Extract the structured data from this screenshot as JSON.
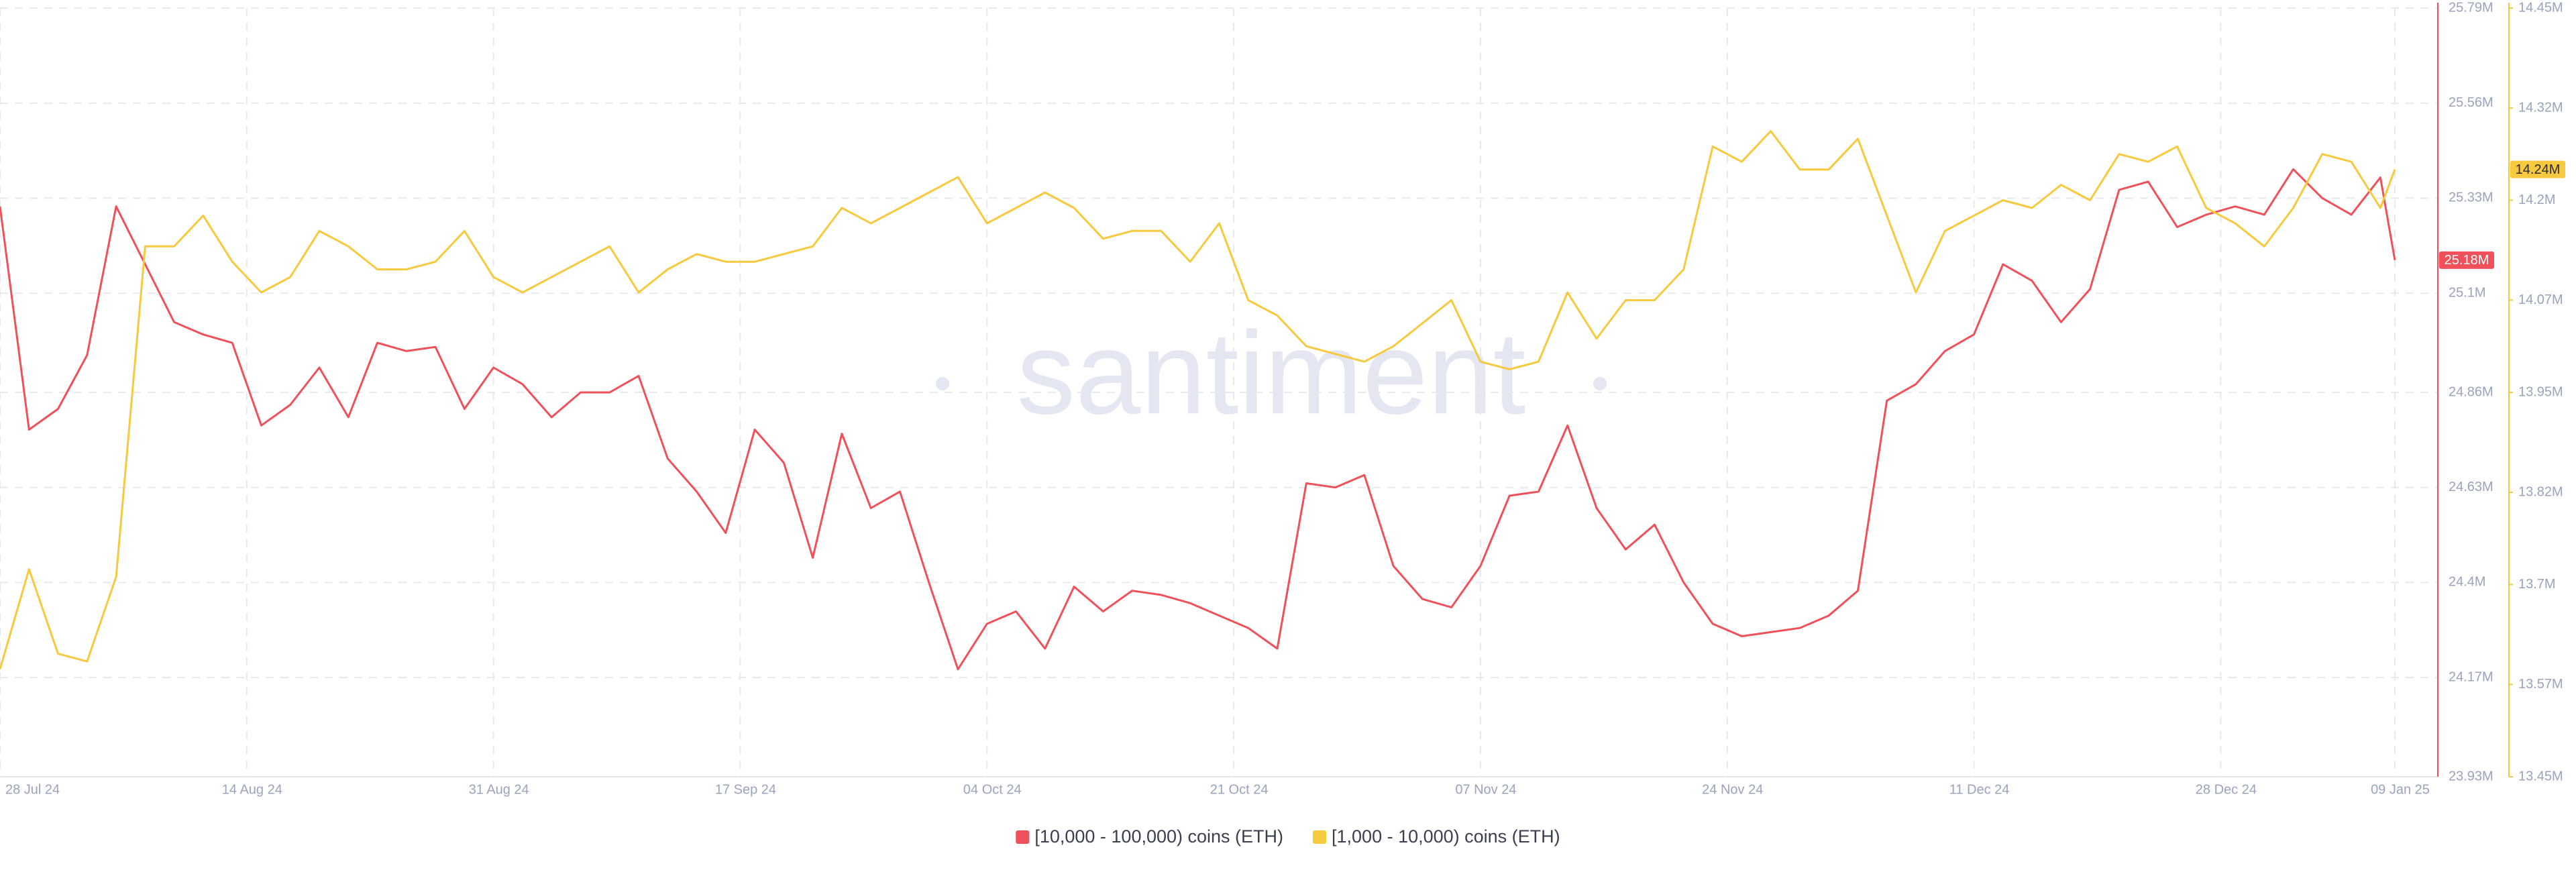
{
  "chart_data": {
    "type": "line",
    "watermark": "santiment",
    "x": [
      "2024-07-28",
      "2024-07-30",
      "2024-08-01",
      "2024-08-03",
      "2024-08-05",
      "2024-08-07",
      "2024-08-09",
      "2024-08-11",
      "2024-08-13",
      "2024-08-15",
      "2024-08-17",
      "2024-08-19",
      "2024-08-21",
      "2024-08-23",
      "2024-08-25",
      "2024-08-27",
      "2024-08-29",
      "2024-08-31",
      "2024-09-02",
      "2024-09-04",
      "2024-09-06",
      "2024-09-08",
      "2024-09-10",
      "2024-09-12",
      "2024-09-14",
      "2024-09-16",
      "2024-09-18",
      "2024-09-20",
      "2024-09-22",
      "2024-09-24",
      "2024-09-26",
      "2024-09-28",
      "2024-09-30",
      "2024-10-02",
      "2024-10-04",
      "2024-10-06",
      "2024-10-08",
      "2024-10-10",
      "2024-10-12",
      "2024-10-14",
      "2024-10-16",
      "2024-10-18",
      "2024-10-20",
      "2024-10-22",
      "2024-10-24",
      "2024-10-26",
      "2024-10-28",
      "2024-10-30",
      "2024-11-01",
      "2024-11-03",
      "2024-11-05",
      "2024-11-07",
      "2024-11-09",
      "2024-11-11",
      "2024-11-13",
      "2024-11-15",
      "2024-11-17",
      "2024-11-19",
      "2024-11-21",
      "2024-11-23",
      "2024-11-25",
      "2024-11-27",
      "2024-11-29",
      "2024-12-01",
      "2024-12-03",
      "2024-12-05",
      "2024-12-07",
      "2024-12-09",
      "2024-12-11",
      "2024-12-13",
      "2024-12-15",
      "2024-12-17",
      "2024-12-19",
      "2024-12-21",
      "2024-12-23",
      "2024-12-25",
      "2024-12-27",
      "2024-12-29",
      "2024-12-31",
      "2025-01-02",
      "2025-01-04",
      "2025-01-06",
      "2025-01-08",
      "2025-01-09"
    ],
    "xlim": [
      "2024-07-28",
      "2025-01-09"
    ],
    "xticks": [
      {
        "value": "2024-07-28",
        "label": "28 Jul 24"
      },
      {
        "value": "2024-08-14",
        "label": "14 Aug 24"
      },
      {
        "value": "2024-08-31",
        "label": "31 Aug 24"
      },
      {
        "value": "2024-09-17",
        "label": "17 Sep 24"
      },
      {
        "value": "2024-10-04",
        "label": "04 Oct 24"
      },
      {
        "value": "2024-10-21",
        "label": "21 Oct 24"
      },
      {
        "value": "2024-11-07",
        "label": "07 Nov 24"
      },
      {
        "value": "2024-11-24",
        "label": "24 Nov 24"
      },
      {
        "value": "2024-12-11",
        "label": "11 Dec 24"
      },
      {
        "value": "2024-12-28",
        "label": "28 Dec 24"
      },
      {
        "value": "2025-01-09",
        "label": "09 Jan 25"
      }
    ],
    "ylim": [
      23.93,
      25.79
    ],
    "yticks": [
      {
        "value": 23.93,
        "label": "23.93M"
      },
      {
        "value": 24.17,
        "label": "24.17M"
      },
      {
        "value": 24.4,
        "label": "24.4M"
      },
      {
        "value": 24.63,
        "label": "24.63M"
      },
      {
        "value": 24.86,
        "label": "24.86M"
      },
      {
        "value": 25.1,
        "label": "25.1M"
      },
      {
        "value": 25.33,
        "label": "25.33M"
      },
      {
        "value": 25.56,
        "label": "25.56M"
      },
      {
        "value": 25.79,
        "label": "25.79M"
      }
    ],
    "y2lim": [
      13.45,
      14.45
    ],
    "y2ticks": [
      {
        "value": 13.45,
        "label": "13.45M"
      },
      {
        "value": 13.57,
        "label": "13.57M"
      },
      {
        "value": 13.7,
        "label": "13.7M"
      },
      {
        "value": 13.82,
        "label": "13.82M"
      },
      {
        "value": 13.95,
        "label": "13.95M"
      },
      {
        "value": 14.07,
        "label": "14.07M"
      },
      {
        "value": 14.2,
        "label": "14.2M"
      },
      {
        "value": 14.32,
        "label": "14.32M"
      },
      {
        "value": 14.45,
        "label": "14.45M"
      }
    ],
    "grid": true,
    "legend": "bottom",
    "series": [
      {
        "name": "[10,000 - 100,000) coins (ETH)",
        "color": "#f0505a",
        "axis": "y",
        "current_value_label": {
          "value": 25.18,
          "label": "25.18M"
        },
        "values": [
          25.31,
          24.77,
          24.82,
          24.95,
          25.31,
          25.17,
          25.03,
          25.0,
          24.98,
          24.78,
          24.83,
          24.92,
          24.8,
          24.98,
          24.96,
          24.97,
          24.82,
          24.92,
          24.88,
          24.8,
          24.86,
          24.86,
          24.9,
          24.7,
          24.62,
          24.52,
          24.77,
          24.69,
          24.46,
          24.76,
          24.58,
          24.62,
          24.4,
          24.19,
          24.3,
          24.33,
          24.24,
          24.39,
          24.33,
          24.38,
          24.37,
          24.35,
          24.32,
          24.29,
          24.24,
          24.64,
          24.63,
          24.66,
          24.44,
          24.36,
          24.34,
          24.44,
          24.61,
          24.62,
          24.78,
          24.58,
          24.48,
          24.54,
          24.4,
          24.3,
          24.27,
          24.28,
          24.29,
          24.32,
          24.38,
          24.84,
          24.88,
          24.96,
          25.0,
          25.17,
          25.13,
          25.03,
          25.11,
          25.35,
          25.37,
          25.26,
          25.29,
          25.31,
          25.29,
          25.4,
          25.33,
          25.29,
          25.38,
          25.18
        ]
      },
      {
        "name": "[1,000 - 10,000) coins (ETH)",
        "color": "#f7c93e",
        "axis": "y2",
        "current_value_label": {
          "value": 14.24,
          "label": "14.24M"
        },
        "values": [
          13.59,
          13.72,
          13.61,
          13.6,
          13.71,
          14.14,
          14.14,
          14.18,
          14.12,
          14.08,
          14.1,
          14.16,
          14.14,
          14.11,
          14.11,
          14.12,
          14.16,
          14.1,
          14.08,
          14.1,
          14.12,
          14.14,
          14.08,
          14.11,
          14.13,
          14.12,
          14.12,
          14.13,
          14.14,
          14.19,
          14.17,
          14.19,
          14.21,
          14.23,
          14.17,
          14.19,
          14.21,
          14.19,
          14.15,
          14.16,
          14.16,
          14.12,
          14.17,
          14.07,
          14.05,
          14.01,
          14.0,
          13.99,
          14.01,
          14.04,
          14.07,
          13.99,
          13.98,
          13.99,
          14.08,
          14.02,
          14.07,
          14.07,
          14.11,
          14.27,
          14.25,
          14.29,
          14.24,
          14.24,
          14.28,
          14.18,
          14.08,
          14.16,
          14.18,
          14.2,
          14.19,
          14.22,
          14.2,
          14.26,
          14.25,
          14.27,
          14.19,
          14.17,
          14.14,
          14.19,
          14.26,
          14.25,
          14.19,
          14.24
        ]
      }
    ]
  }
}
